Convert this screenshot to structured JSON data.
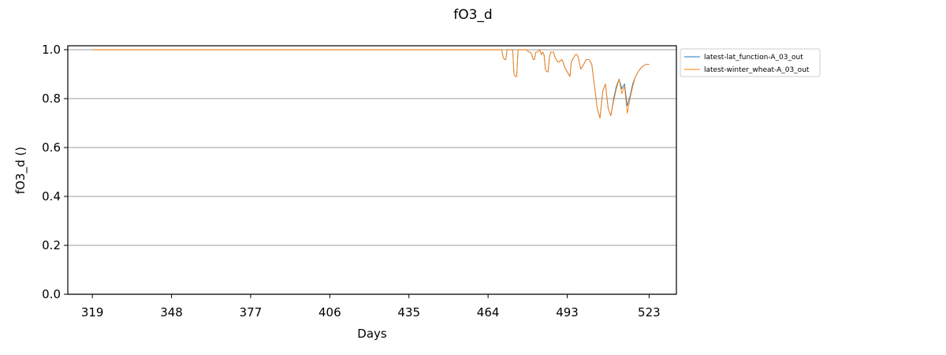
{
  "chart_data": {
    "type": "line",
    "title": "fO3_d",
    "xlabel": "Days",
    "ylabel": "fO3_d ()",
    "xlim": [
      310,
      533
    ],
    "ylim": [
      0,
      1.0
    ],
    "xticks": [
      319,
      348,
      377,
      406,
      435,
      464,
      493,
      523
    ],
    "yticks": [
      0.0,
      0.2,
      0.4,
      0.6,
      0.8,
      1.0
    ],
    "ytick_labels": [
      "0.0",
      "0.2",
      "0.4",
      "0.6",
      "0.8",
      "1.0"
    ],
    "grid": "horizontal",
    "legend_position": "outside-top-right",
    "series": [
      {
        "name": "latest-lat_function-A_03_out",
        "color": "#1f77b4",
        "x": [
          319,
          464,
          469,
          469.5,
          470,
          470.5,
          471,
          471.5,
          472,
          473,
          473.5,
          474,
          474.5,
          475,
          476,
          478,
          479,
          479.5,
          480,
          480.5,
          481,
          481.5,
          482,
          483,
          483.5,
          484,
          484.5,
          485,
          485.5,
          486,
          486.5,
          487,
          488,
          488.5,
          489,
          489.5,
          490,
          491,
          491.5,
          492,
          493,
          494,
          494.5,
          495,
          495.5,
          496,
          496.5,
          497,
          498,
          499,
          500,
          501,
          502,
          503,
          504,
          505,
          506,
          507,
          508,
          509,
          510,
          511,
          512,
          513,
          514,
          515,
          516,
          517,
          518,
          519,
          520,
          521,
          522,
          523
        ],
        "y": [
          1.0,
          1.0,
          1.0,
          0.97,
          0.96,
          0.96,
          1.0,
          1.0,
          1.0,
          1.0,
          0.9,
          0.89,
          0.89,
          1.0,
          1.0,
          1.0,
          0.99,
          0.99,
          0.98,
          0.96,
          0.96,
          0.99,
          0.99,
          1.0,
          0.98,
          0.99,
          0.98,
          0.92,
          0.91,
          0.91,
          0.97,
          0.99,
          0.99,
          0.97,
          0.96,
          0.95,
          0.95,
          0.96,
          0.95,
          0.93,
          0.91,
          0.89,
          0.95,
          0.96,
          0.97,
          0.98,
          0.98,
          0.97,
          0.92,
          0.94,
          0.96,
          0.96,
          0.94,
          0.85,
          0.76,
          0.72,
          0.83,
          0.86,
          0.76,
          0.73,
          0.8,
          0.85,
          0.88,
          0.84,
          0.86,
          0.77,
          0.81,
          0.86,
          0.89,
          0.91,
          0.925,
          0.935,
          0.94,
          0.94
        ]
      },
      {
        "name": "latest-winter_wheat-A_03_out",
        "color": "#ff7f0e",
        "x": [
          319,
          464,
          469,
          469.5,
          470,
          470.5,
          471,
          471.5,
          472,
          473,
          473.5,
          474,
          474.5,
          475,
          476,
          478,
          479,
          479.5,
          480,
          480.5,
          481,
          481.5,
          482,
          483,
          483.5,
          484,
          484.5,
          485,
          485.5,
          486,
          486.5,
          487,
          488,
          488.5,
          489,
          489.5,
          490,
          491,
          491.5,
          492,
          493,
          494,
          494.5,
          495,
          495.5,
          496,
          496.5,
          497,
          498,
          499,
          500,
          501,
          502,
          503,
          504,
          505,
          506,
          507,
          508,
          509,
          510,
          511,
          512,
          513,
          514,
          515,
          516,
          517,
          518,
          519,
          520,
          521,
          522,
          523
        ],
        "y": [
          1.0,
          1.0,
          1.0,
          0.97,
          0.96,
          0.96,
          1.0,
          1.0,
          1.0,
          1.0,
          0.9,
          0.89,
          0.89,
          1.0,
          1.0,
          1.0,
          0.99,
          0.99,
          0.98,
          0.96,
          0.96,
          0.99,
          0.99,
          1.0,
          0.98,
          0.99,
          0.98,
          0.92,
          0.91,
          0.91,
          0.97,
          0.99,
          0.99,
          0.97,
          0.96,
          0.95,
          0.95,
          0.96,
          0.95,
          0.93,
          0.91,
          0.89,
          0.95,
          0.96,
          0.97,
          0.98,
          0.98,
          0.97,
          0.92,
          0.94,
          0.96,
          0.96,
          0.94,
          0.85,
          0.76,
          0.72,
          0.83,
          0.86,
          0.76,
          0.73,
          0.79,
          0.84,
          0.88,
          0.82,
          0.85,
          0.74,
          0.8,
          0.85,
          0.89,
          0.91,
          0.925,
          0.935,
          0.94,
          0.94
        ]
      }
    ]
  }
}
